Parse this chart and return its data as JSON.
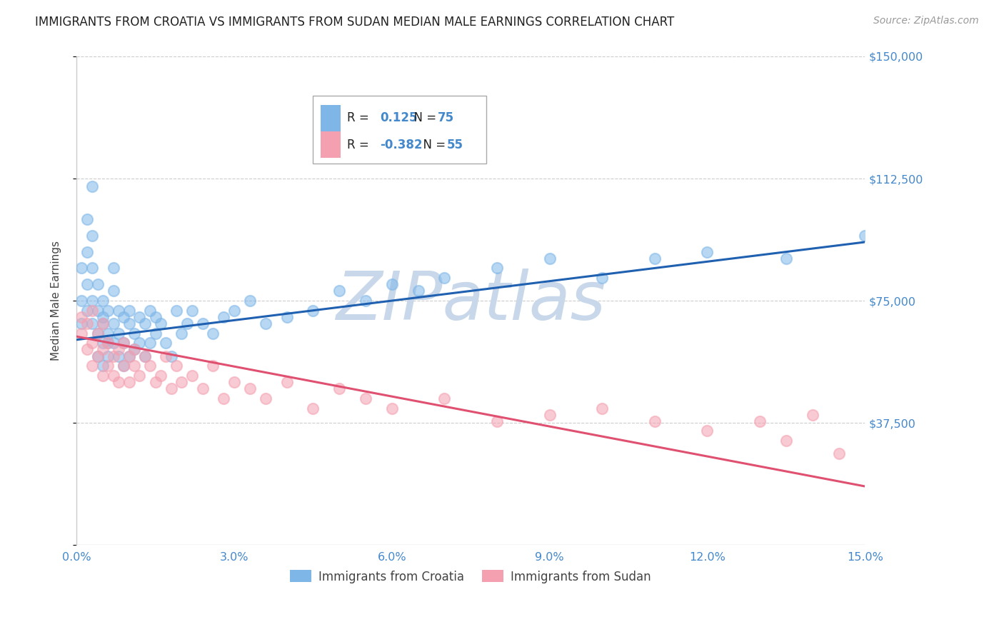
{
  "title": "IMMIGRANTS FROM CROATIA VS IMMIGRANTS FROM SUDAN MEDIAN MALE EARNINGS CORRELATION CHART",
  "source": "Source: ZipAtlas.com",
  "ylabel": "Median Male Earnings",
  "xlim": [
    0.0,
    0.15
  ],
  "ylim": [
    0,
    150000
  ],
  "xticks": [
    0.0,
    0.03,
    0.06,
    0.09,
    0.12,
    0.15
  ],
  "xticklabels": [
    "0.0%",
    "3.0%",
    "6.0%",
    "9.0%",
    "12.0%",
    "15.0%"
  ],
  "yticks": [
    0,
    37500,
    75000,
    112500,
    150000
  ],
  "yticklabels": [
    "",
    "$37,500",
    "$75,000",
    "$112,500",
    "$150,000"
  ],
  "croatia_color": "#7EB6E8",
  "sudan_color": "#F4A0B0",
  "croatia_line_color": "#2060B0",
  "sudan_line_color": "#E05070",
  "croatia_R": 0.125,
  "croatia_N": 75,
  "sudan_R": -0.382,
  "sudan_N": 55,
  "watermark": "ZIPatlas",
  "watermark_color": "#C8D8EA",
  "grid_color": "#CCCCCC",
  "title_color": "#222222",
  "axis_label_color": "#444444",
  "tick_color": "#4488CC",
  "legend_R_color": "#4488CC",
  "croatia_line_y0": 63000,
  "croatia_line_y1": 93000,
  "sudan_line_y0": 64000,
  "sudan_line_y1": 18000,
  "croatia_scatter": {
    "x": [
      0.001,
      0.001,
      0.001,
      0.002,
      0.002,
      0.002,
      0.002,
      0.003,
      0.003,
      0.003,
      0.003,
      0.003,
      0.004,
      0.004,
      0.004,
      0.004,
      0.005,
      0.005,
      0.005,
      0.005,
      0.005,
      0.006,
      0.006,
      0.006,
      0.006,
      0.007,
      0.007,
      0.007,
      0.007,
      0.008,
      0.008,
      0.008,
      0.009,
      0.009,
      0.009,
      0.01,
      0.01,
      0.01,
      0.011,
      0.011,
      0.012,
      0.012,
      0.013,
      0.013,
      0.014,
      0.014,
      0.015,
      0.015,
      0.016,
      0.017,
      0.018,
      0.019,
      0.02,
      0.021,
      0.022,
      0.024,
      0.026,
      0.028,
      0.03,
      0.033,
      0.036,
      0.04,
      0.045,
      0.05,
      0.055,
      0.06,
      0.065,
      0.07,
      0.08,
      0.09,
      0.1,
      0.11,
      0.12,
      0.135,
      0.15
    ],
    "y": [
      68000,
      75000,
      85000,
      72000,
      80000,
      90000,
      100000,
      75000,
      85000,
      95000,
      110000,
      68000,
      72000,
      80000,
      65000,
      58000,
      70000,
      62000,
      75000,
      55000,
      68000,
      65000,
      72000,
      58000,
      62000,
      85000,
      78000,
      68000,
      62000,
      72000,
      65000,
      58000,
      70000,
      62000,
      55000,
      68000,
      72000,
      58000,
      65000,
      60000,
      70000,
      62000,
      68000,
      58000,
      72000,
      62000,
      65000,
      70000,
      68000,
      62000,
      58000,
      72000,
      65000,
      68000,
      72000,
      68000,
      65000,
      70000,
      72000,
      75000,
      68000,
      70000,
      72000,
      78000,
      75000,
      80000,
      78000,
      82000,
      85000,
      88000,
      82000,
      88000,
      90000,
      88000,
      95000
    ]
  },
  "sudan_scatter": {
    "x": [
      0.001,
      0.001,
      0.002,
      0.002,
      0.003,
      0.003,
      0.003,
      0.004,
      0.004,
      0.005,
      0.005,
      0.005,
      0.006,
      0.006,
      0.007,
      0.007,
      0.008,
      0.008,
      0.009,
      0.009,
      0.01,
      0.01,
      0.011,
      0.011,
      0.012,
      0.013,
      0.014,
      0.015,
      0.016,
      0.017,
      0.018,
      0.019,
      0.02,
      0.022,
      0.024,
      0.026,
      0.028,
      0.03,
      0.033,
      0.036,
      0.04,
      0.045,
      0.05,
      0.055,
      0.06,
      0.07,
      0.08,
      0.09,
      0.1,
      0.11,
      0.12,
      0.13,
      0.135,
      0.14,
      0.145
    ],
    "y": [
      65000,
      70000,
      60000,
      68000,
      72000,
      62000,
      55000,
      65000,
      58000,
      60000,
      52000,
      68000,
      55000,
      62000,
      58000,
      52000,
      60000,
      50000,
      55000,
      62000,
      58000,
      50000,
      55000,
      60000,
      52000,
      58000,
      55000,
      50000,
      52000,
      58000,
      48000,
      55000,
      50000,
      52000,
      48000,
      55000,
      45000,
      50000,
      48000,
      45000,
      50000,
      42000,
      48000,
      45000,
      42000,
      45000,
      38000,
      40000,
      42000,
      38000,
      35000,
      38000,
      32000,
      40000,
      28000
    ]
  }
}
